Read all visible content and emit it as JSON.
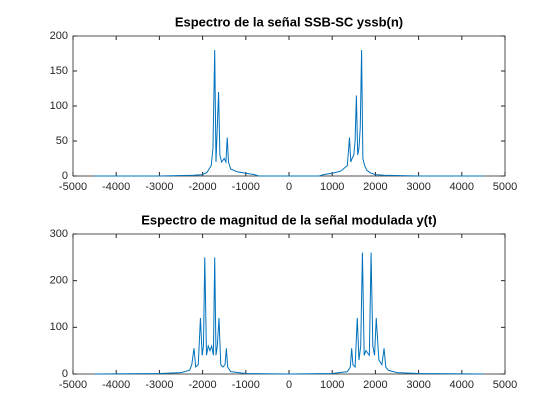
{
  "chart_data": [
    {
      "type": "line",
      "title": "Espectro de la señal SSB-SC yssb(n)",
      "x": [
        -4500,
        -3000,
        -2200,
        -2000,
        -1900,
        -1800,
        -1760,
        -1720,
        -1690,
        -1660,
        -1630,
        -1600,
        -1560,
        -1500,
        -1460,
        -1430,
        -1400,
        -1350,
        -1200,
        -1000,
        -800,
        -700,
        0,
        700,
        800,
        1000,
        1200,
        1350,
        1400,
        1430,
        1460,
        1500,
        1530,
        1560,
        1590,
        1620,
        1650,
        1680,
        1710,
        1750,
        1800,
        1900,
        2000,
        2200,
        3000,
        4500
      ],
      "series": [
        {
          "color": "#0072bd",
          "values": [
            0,
            0,
            1,
            2,
            5,
            15,
            40,
            180,
            20,
            70,
            120,
            30,
            20,
            25,
            20,
            55,
            20,
            10,
            6,
            4,
            2,
            0,
            0,
            0,
            2,
            4,
            7,
            15,
            55,
            20,
            25,
            30,
            50,
            115,
            30,
            40,
            70,
            180,
            25,
            15,
            8,
            4,
            2,
            1,
            0,
            0
          ]
        }
      ],
      "xlim": [
        -5000,
        5000
      ],
      "xticks": [
        -5000,
        -4000,
        -3000,
        -2000,
        -1000,
        0,
        1000,
        2000,
        3000,
        4000,
        5000
      ],
      "ylim": [
        0,
        200
      ],
      "yticks": [
        0,
        50,
        100,
        150,
        200
      ]
    },
    {
      "type": "line",
      "title": "Espectro de magnitud de la señal modulada y(t)",
      "x": [
        -4500,
        -3000,
        -2500,
        -2300,
        -2250,
        -2200,
        -2160,
        -2100,
        -2050,
        -2010,
        -1980,
        -1950,
        -1910,
        -1870,
        -1830,
        -1790,
        -1750,
        -1720,
        -1690,
        -1660,
        -1620,
        -1580,
        -1530,
        -1480,
        -1450,
        -1420,
        -1350,
        -1000,
        0,
        1000,
        1350,
        1420,
        1450,
        1480,
        1530,
        1580,
        1620,
        1660,
        1700,
        1740,
        1780,
        1820,
        1860,
        1900,
        1940,
        1980,
        2020,
        2080,
        2150,
        2200,
        2240,
        2300,
        2500,
        3000,
        4500
      ],
      "series": [
        {
          "color": "#0072bd",
          "values": [
            0,
            1,
            3,
            8,
            20,
            55,
            15,
            20,
            120,
            40,
            60,
            250,
            40,
            60,
            50,
            60,
            40,
            250,
            40,
            60,
            120,
            20,
            15,
            20,
            55,
            15,
            5,
            1,
            0,
            1,
            5,
            15,
            55,
            20,
            15,
            120,
            30,
            60,
            260,
            40,
            50,
            45,
            40,
            260,
            60,
            40,
            120,
            30,
            20,
            55,
            15,
            8,
            3,
            1,
            0
          ]
        }
      ],
      "xlim": [
        -5000,
        5000
      ],
      "xticks": [
        -5000,
        -4000,
        -3000,
        -2000,
        -1000,
        0,
        1000,
        2000,
        3000,
        4000,
        5000
      ],
      "ylim": [
        0,
        300
      ],
      "yticks": [
        0,
        100,
        200,
        300
      ]
    }
  ]
}
